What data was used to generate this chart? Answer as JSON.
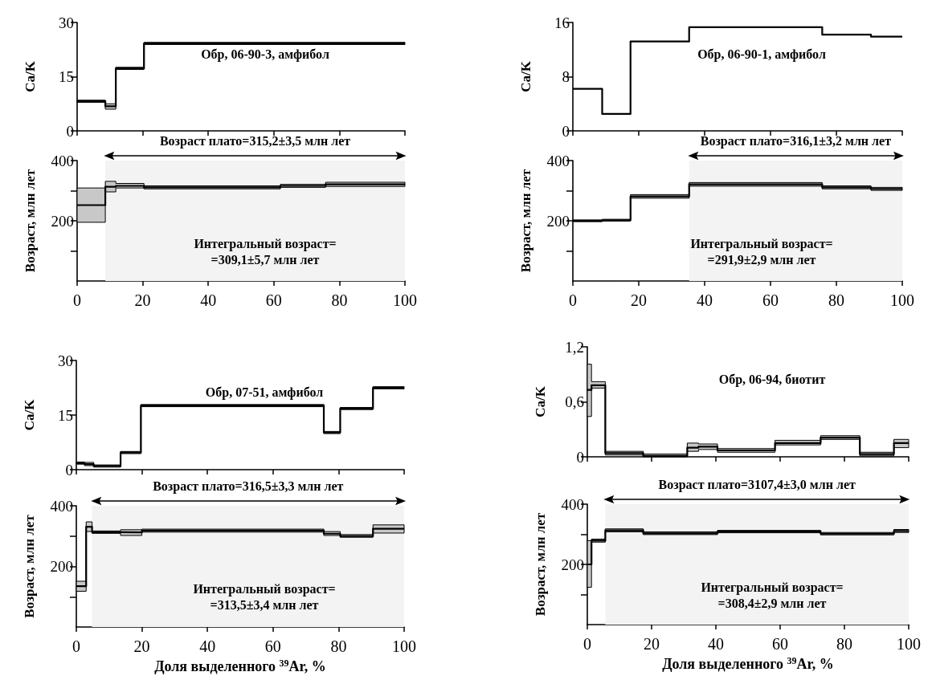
{
  "chart_data": [
    {
      "type": "step",
      "x": [
        0,
        8.6,
        11.8,
        20.4,
        100
      ],
      "series": [
        {
          "color": "#000000",
          "values": [
            8.2,
            6.8,
            17.3,
            24.2,
            24.2
          ],
          "lower": [
            7.9,
            6.0,
            17.0,
            23.9,
            23.9
          ],
          "upper": [
            8.5,
            7.5,
            17.6,
            24.5,
            24.5
          ]
        }
      ],
      "xlim": [
        0,
        100
      ],
      "xticks": [
        0,
        20,
        40,
        60,
        80,
        100
      ],
      "ylim": [
        0,
        30
      ],
      "yticks": [
        0,
        15,
        30
      ],
      "ylabel": "Ca/K",
      "tick_labels": "y",
      "annotations": [
        "Обр, 06-90-3, амфибол"
      ]
    },
    {
      "type": "step",
      "x": [
        0,
        8.6,
        11.8,
        20.4,
        62,
        75.8,
        100
      ],
      "series": [
        {
          "color": "#000000",
          "values": [
            252,
            313,
            316,
            311,
            316,
            321,
            321
          ],
          "lower": [
            195,
            296,
            309,
            306,
            311,
            314,
            314
          ],
          "upper": [
            309,
            331,
            324,
            316,
            321,
            328,
            328
          ]
        }
      ],
      "xlim": [
        0,
        100
      ],
      "xticks": [
        0,
        20,
        40,
        60,
        80,
        100
      ],
      "ylim": [
        0,
        400
      ],
      "yticks": [
        {
          "value": 100,
          "label": null
        },
        200,
        {
          "value": 300,
          "label": null
        },
        400
      ],
      "ylabel": "Возраст, млн лет",
      "bands": [
        {
          "axis": "x",
          "from": 8.6,
          "to": 100,
          "label": "Возраст плато=315,2±3,5 млн лет"
        }
      ],
      "annotations": [
        "Интегральный возраст=\n=309,1±5,7 млн лет"
      ]
    },
    {
      "type": "step",
      "x": [
        0,
        8.9,
        17.5,
        35.3,
        75.7,
        90.5,
        100
      ],
      "series": [
        {
          "color": "#000000",
          "values": [
            6.2,
            2.5,
            13.2,
            15.3,
            14.2,
            13.9,
            13.9
          ]
        }
      ],
      "xlim": [
        0,
        100
      ],
      "xticks": [
        0,
        20,
        40,
        60,
        80,
        100
      ],
      "ylim": [
        0,
        16
      ],
      "yticks": [
        0,
        8,
        16
      ],
      "ylabel": "Ca/K",
      "tick_labels": "y",
      "annotations": [
        "Обр, 06-90-1, амфибол"
      ]
    },
    {
      "type": "step",
      "x": [
        0,
        8.9,
        17.5,
        35.3,
        75.7,
        90.5,
        100
      ],
      "series": [
        {
          "color": "#000000",
          "values": [
            200,
            202,
            281,
            321,
            311,
            306,
            306
          ],
          "lower": [
            197,
            199,
            275,
            315,
            306,
            301,
            301
          ],
          "upper": [
            203,
            205,
            287,
            327,
            316,
            311,
            311
          ]
        }
      ],
      "xlim": [
        0,
        100
      ],
      "xticks": [
        0,
        20,
        40,
        60,
        80,
        100
      ],
      "ylim": [
        0,
        400
      ],
      "yticks": [
        {
          "value": 100,
          "label": null
        },
        200,
        {
          "value": 300,
          "label": null
        },
        400
      ],
      "ylabel": "Возраст, млн лет",
      "bands": [
        {
          "axis": "x",
          "from": 35.3,
          "to": 100,
          "label": "Возраст плато=316,1±3,2 млн лет"
        }
      ],
      "annotations": [
        "Интегральный возраст=\n=291,9±2,9 млн лет"
      ]
    },
    {
      "type": "step",
      "x": [
        0,
        2.5,
        5.3,
        13.5,
        19.7,
        75.5,
        80.5,
        90.5,
        100
      ],
      "series": [
        {
          "color": "#000000",
          "values": [
            1.8,
            1.5,
            1.0,
            4.7,
            17.6,
            10.2,
            16.8,
            22.5,
            22.5
          ],
          "lower": [
            1.5,
            1.1,
            0.7,
            4.4,
            17.3,
            9.9,
            16.5,
            22.2,
            22.2
          ],
          "upper": [
            2.1,
            2.0,
            1.3,
            5.0,
            17.9,
            10.5,
            17.1,
            22.8,
            22.8
          ]
        }
      ],
      "xlim": [
        0,
        100
      ],
      "xticks": [
        0,
        20,
        40,
        60,
        80,
        100
      ],
      "ylim": [
        0,
        30
      ],
      "yticks": [
        0,
        15,
        30
      ],
      "ylabel": "Ca/K",
      "tick_labels": "y",
      "annotations": [
        "Обр, 07-51, амфибол"
      ]
    },
    {
      "type": "step",
      "x": [
        0,
        3,
        4.8,
        13.5,
        20,
        75.5,
        80.5,
        90.5,
        100
      ],
      "series": [
        {
          "color": "#000000",
          "values": [
            135,
            331,
            313,
            312,
            318,
            308,
            300,
            324,
            324
          ],
          "lower": [
            118,
            315,
            309,
            302,
            313,
            302,
            296,
            310,
            310
          ],
          "upper": [
            151,
            347,
            317,
            321,
            323,
            315,
            305,
            337,
            337
          ]
        }
      ],
      "xlim": [
        0,
        100
      ],
      "xticks": [
        0,
        20,
        40,
        60,
        80,
        100
      ],
      "ylim": [
        0,
        400
      ],
      "yticks": [
        {
          "value": 100,
          "label": null
        },
        200,
        {
          "value": 300,
          "label": null
        },
        400
      ],
      "ylabel": "Возраст, млн лет",
      "xlabel": "Доля выделенного $^{39}$Ar, %",
      "bands": [
        {
          "axis": "x",
          "from": 4.8,
          "to": 100,
          "label": "Возраст плато=316,5±3,3 млн лет"
        }
      ],
      "annotations": [
        "Интегральный возраст=\n=313,5±3,4 млн лет"
      ]
    },
    {
      "type": "step",
      "x": [
        0,
        1.3,
        5.6,
        17.4,
        31.1,
        34.6,
        40.5,
        58.4,
        72.6,
        84.8,
        95.4,
        100
      ],
      "series": [
        {
          "color": "#000000",
          "values": [
            0.73,
            0.78,
            0.04,
            0.01,
            0.1,
            0.11,
            0.07,
            0.15,
            0.21,
            0.03,
            0.15,
            0.15
          ],
          "lower": [
            0.44,
            0.75,
            0.02,
            0.0,
            0.06,
            0.08,
            0.05,
            0.13,
            0.19,
            0.01,
            0.1,
            0.1
          ],
          "upper": [
            1.01,
            0.82,
            0.06,
            0.03,
            0.15,
            0.14,
            0.09,
            0.18,
            0.23,
            0.05,
            0.19,
            0.19
          ]
        }
      ],
      "xlim": [
        0,
        100
      ],
      "xticks": [
        0,
        20,
        40,
        60,
        80,
        100
      ],
      "ylim": [
        0,
        1.2
      ],
      "yticks": [
        0,
        {
          "value": 0.6,
          "label": "0,6"
        },
        {
          "value": 1.2,
          "label": "1,2"
        }
      ],
      "ylabel": "Ca/K",
      "tick_labels": "y",
      "annotations": [
        "Обр, 06-94, биотит"
      ]
    },
    {
      "type": "step",
      "x": [
        0,
        1.3,
        5.6,
        17.4,
        40.5,
        72.6,
        95.4,
        100
      ],
      "series": [
        {
          "color": "#000000",
          "values": [
            200,
            279,
            313,
            303,
            309,
            302,
            311,
            311
          ],
          "lower": [
            124,
            274,
            308,
            299,
            305,
            298,
            306,
            306
          ],
          "upper": [
            279,
            284,
            318,
            308,
            313,
            306,
            316,
            316
          ]
        }
      ],
      "xlim": [
        0,
        100
      ],
      "xticks": [
        0,
        20,
        40,
        60,
        80,
        100
      ],
      "ylim": [
        0,
        400
      ],
      "yticks": [
        {
          "value": 100,
          "label": null
        },
        200,
        {
          "value": 300,
          "label": null
        },
        400
      ],
      "ylabel": "Возраст, млн лет",
      "xlabel": "Доля выделенного $^{39}$Ar, %",
      "bands": [
        {
          "axis": "x",
          "from": 5.6,
          "to": 100,
          "label": "Возраст плато=3107,4±3,0 млн лет"
        }
      ],
      "annotations": [
        "Интегральный возраст=\n=308,4±2,9 млн лет"
      ]
    }
  ]
}
